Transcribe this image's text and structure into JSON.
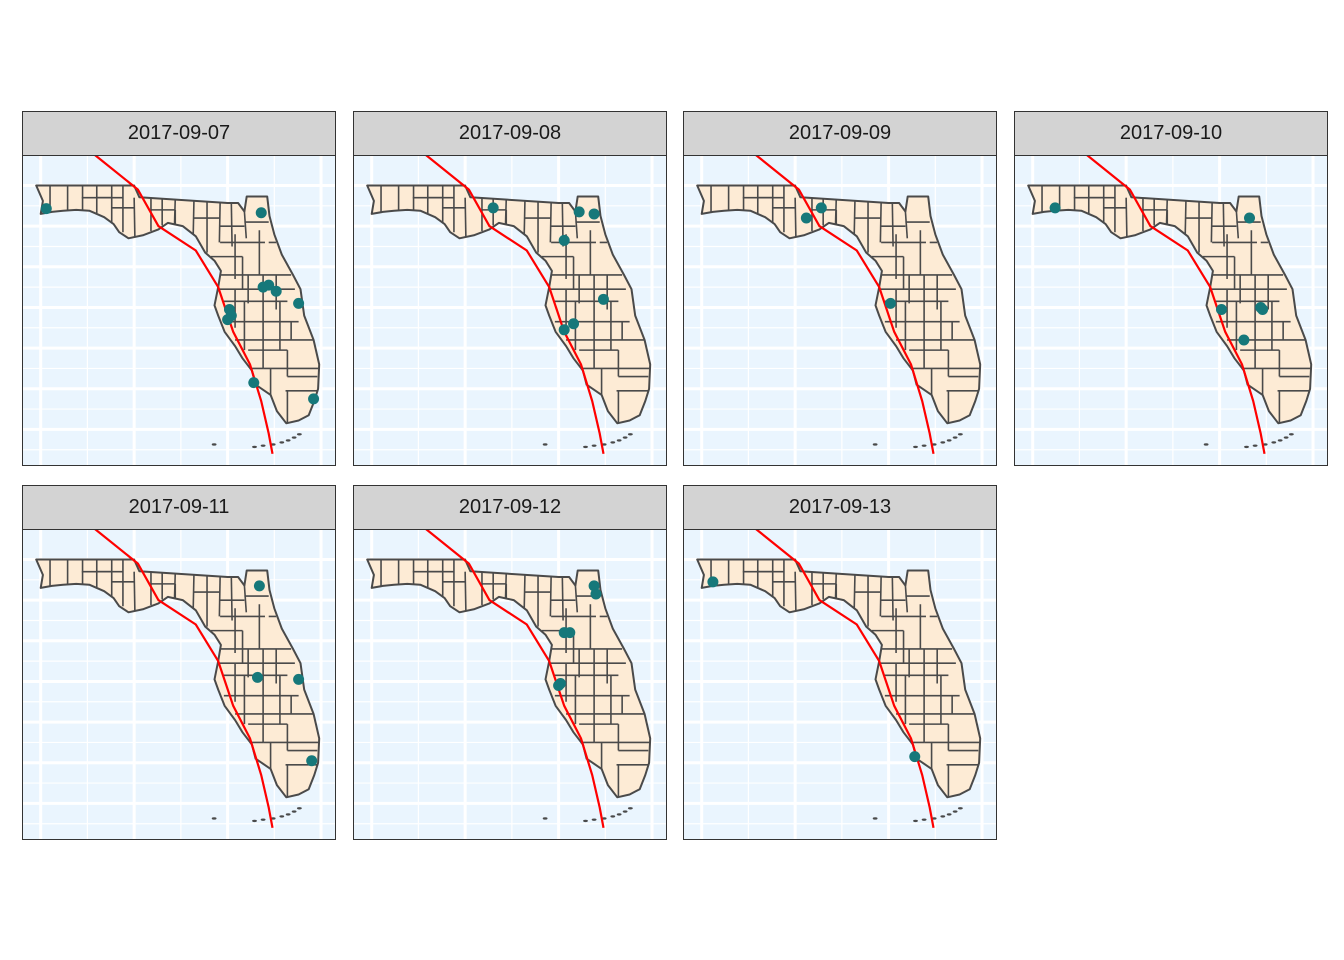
{
  "colors": {
    "panel_background": "#eaf5fe",
    "grid": "#ffffff",
    "land": "#fdebd5",
    "county_border": "#4a4a4a",
    "track": "#ff0000",
    "point": "#16787a",
    "strip_background": "#d3d3d3"
  },
  "map": {
    "type": "faceted_map",
    "region": "Florida counties",
    "overlay": "storm track line",
    "facet_variable": "date",
    "facets": [
      {
        "label": "2017-09-07",
        "points": [
          [
            -87.35,
            30.43
          ],
          [
            -81.6,
            30.33
          ],
          [
            -82.45,
            27.95
          ],
          [
            -82.4,
            27.8
          ],
          [
            -82.5,
            27.7
          ],
          [
            -81.4,
            28.55
          ],
          [
            -81.55,
            28.5
          ],
          [
            -81.2,
            28.4
          ],
          [
            -80.6,
            28.1
          ],
          [
            -81.8,
            26.15
          ],
          [
            -80.2,
            25.75
          ]
        ]
      },
      {
        "label": "2017-09-08",
        "points": [
          [
            -84.25,
            30.45
          ],
          [
            -81.95,
            30.35
          ],
          [
            -81.55,
            30.3
          ],
          [
            -82.35,
            29.65
          ],
          [
            -81.3,
            28.2
          ],
          [
            -82.1,
            27.6
          ],
          [
            -82.35,
            27.45
          ]
        ]
      },
      {
        "label": "2017-09-09",
        "points": [
          [
            -84.3,
            30.45
          ],
          [
            -84.7,
            30.2
          ],
          [
            -82.45,
            28.1
          ]
        ]
      },
      {
        "label": "2017-09-10",
        "points": [
          [
            -86.9,
            30.45
          ],
          [
            -81.7,
            30.2
          ],
          [
            -82.45,
            27.95
          ],
          [
            -81.4,
            28.0
          ],
          [
            -81.35,
            27.95
          ],
          [
            -81.85,
            27.2
          ]
        ]
      },
      {
        "label": "2017-09-11",
        "points": [
          [
            -81.65,
            30.35
          ],
          [
            -81.7,
            28.1
          ],
          [
            -80.6,
            28.05
          ],
          [
            -80.25,
            26.05
          ]
        ]
      },
      {
        "label": "2017-09-12",
        "points": [
          [
            -81.55,
            30.35
          ],
          [
            -81.5,
            30.15
          ],
          [
            -82.2,
            29.2
          ],
          [
            -82.35,
            29.2
          ],
          [
            -82.45,
            27.95
          ],
          [
            -82.5,
            27.9
          ]
        ]
      },
      {
        "label": "2017-09-13",
        "points": [
          [
            -87.2,
            30.45
          ],
          [
            -81.8,
            26.15
          ]
        ]
      }
    ],
    "track": [
      [
        -86.05,
        31.75
      ],
      [
        -84.9,
        30.9
      ],
      [
        -84.35,
        30.0
      ],
      [
        -83.35,
        29.4
      ],
      [
        -82.75,
        28.5
      ],
      [
        -82.35,
        27.4
      ],
      [
        -81.9,
        26.6
      ],
      [
        -81.6,
        25.7
      ],
      [
        -81.4,
        24.9
      ],
      [
        -81.3,
        24.4
      ]
    ]
  }
}
